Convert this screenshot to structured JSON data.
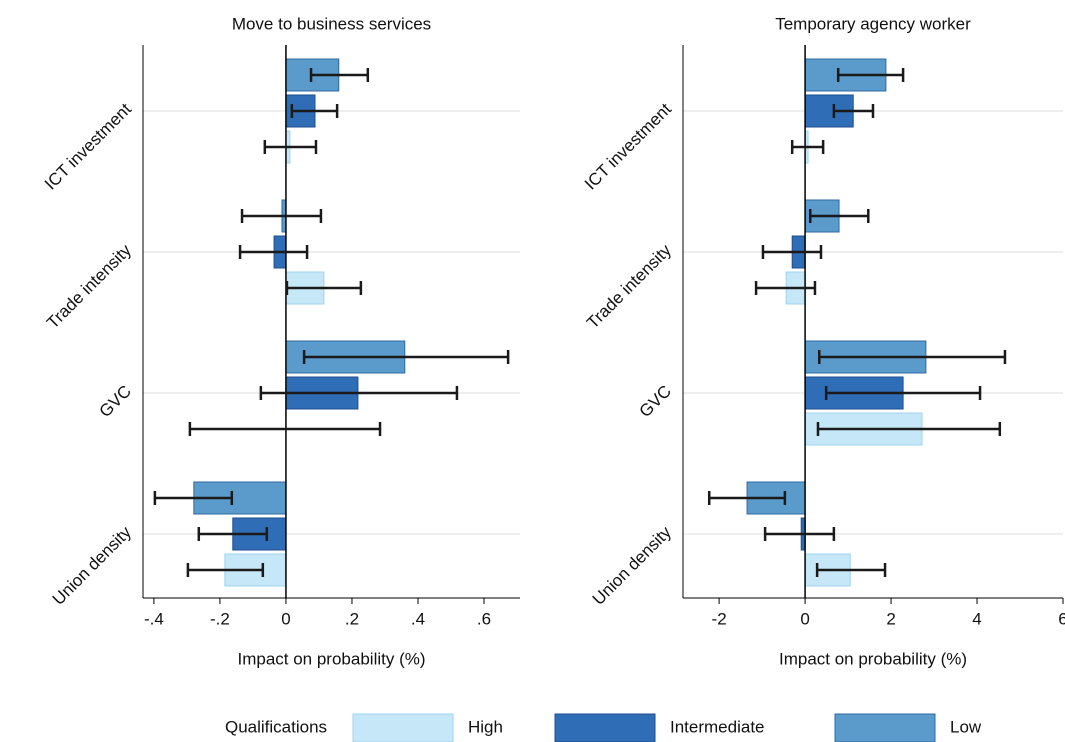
{
  "chart_data": [
    {
      "type": "hbar",
      "title": "Move to business services",
      "x_label": "Impact on probability (%)",
      "categories": [
        "ICT investment",
        "Trade intensity",
        "GVC",
        "Union density"
      ],
      "series": [
        {
          "name": "High",
          "color": "#c6e7f8",
          "values": [
            0.012,
            0.115,
            0.0,
            -0.185
          ],
          "lower": [
            -0.064,
            0.003,
            -0.291,
            -0.297
          ],
          "upper": [
            0.091,
            0.227,
            0.285,
            -0.07
          ]
        },
        {
          "name": "Intermediate",
          "color": "#2f6db6",
          "values": [
            0.088,
            -0.036,
            0.218,
            -0.161
          ],
          "lower": [
            0.018,
            -0.139,
            -0.076,
            -0.264
          ],
          "upper": [
            0.155,
            0.064,
            0.518,
            -0.058
          ]
        },
        {
          "name": "Low",
          "color": "#5b9bcb",
          "values": [
            0.16,
            -0.012,
            0.36,
            -0.279
          ],
          "lower": [
            0.076,
            -0.133,
            0.055,
            -0.397
          ],
          "upper": [
            0.248,
            0.106,
            0.673,
            -0.164
          ]
        }
      ],
      "xlim": [
        -0.433,
        0.709
      ],
      "xticks": [
        {
          "value": -0.4,
          "label": "-.4"
        },
        {
          "value": -0.2,
          "label": "-.2"
        },
        0,
        {
          "value": 0.2,
          "label": ".2"
        },
        {
          "value": 0.4,
          "label": ".4"
        },
        {
          "value": 0.6,
          "label": ".6"
        }
      ]
    },
    {
      "type": "hbar",
      "title": "Temporary agency worker",
      "x_label": "Impact on probability (%)",
      "categories": [
        "ICT investment",
        "Trade intensity",
        "GVC",
        "Union density"
      ],
      "series": [
        {
          "name": "High",
          "color": "#c6e7f8",
          "values": [
            0.07,
            -0.44,
            2.72,
            1.05
          ],
          "lower": [
            -0.3,
            -1.14,
            0.3,
            0.28
          ],
          "upper": [
            0.42,
            0.23,
            4.53,
            1.86
          ]
        },
        {
          "name": "Intermediate",
          "color": "#2f6db6",
          "values": [
            1.12,
            -0.3,
            2.28,
            -0.09
          ],
          "lower": [
            0.67,
            -0.98,
            0.49,
            -0.93
          ],
          "upper": [
            1.58,
            0.37,
            4.07,
            0.67
          ]
        },
        {
          "name": "Low",
          "color": "#5b9bcb",
          "values": [
            1.88,
            0.79,
            2.81,
            -1.35
          ],
          "lower": [
            0.77,
            0.12,
            0.33,
            -2.23
          ],
          "upper": [
            2.28,
            1.47,
            4.65,
            -0.47
          ]
        }
      ],
      "xlim": [
        -2.84,
        6.0
      ],
      "xticks": [
        -2,
        0,
        2,
        4,
        6
      ]
    }
  ],
  "legend": {
    "title": "Qualifications"
  }
}
